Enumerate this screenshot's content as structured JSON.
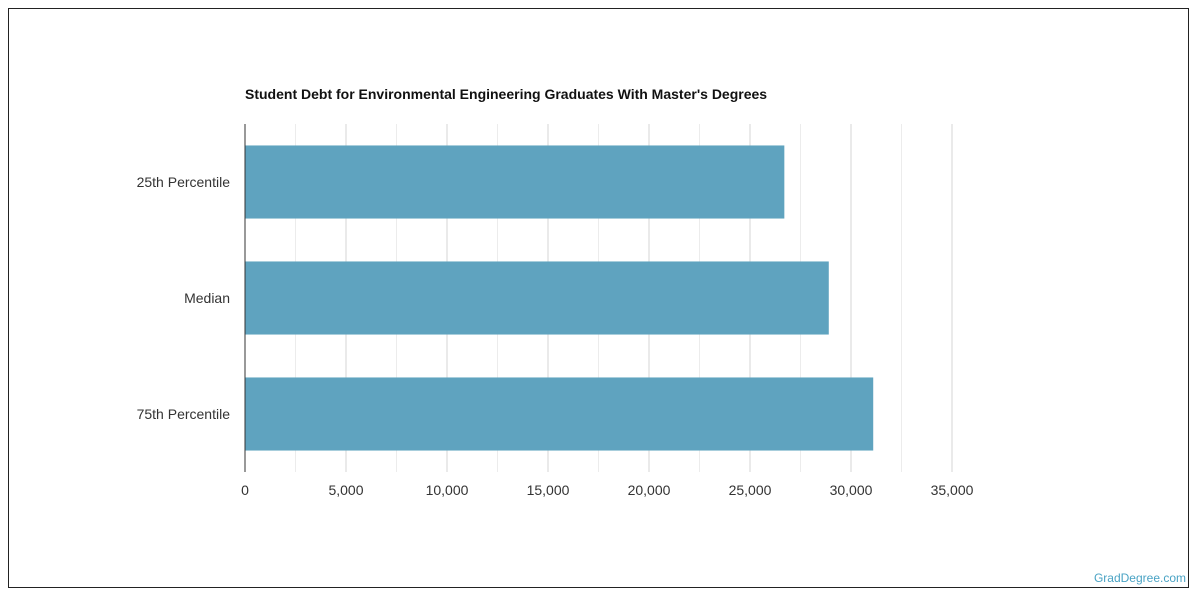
{
  "chart_data": {
    "type": "bar",
    "orientation": "horizontal",
    "title": "Student Debt for Environmental Engineering Graduates With Master's Degrees",
    "categories": [
      "25th Percentile",
      "Median",
      "75th Percentile"
    ],
    "values": [
      26700,
      28900,
      31100
    ],
    "xlim": [
      0,
      35000
    ],
    "x_ticks": [
      "0",
      "5,000",
      "10,000",
      "15,000",
      "20,000",
      "25,000",
      "30,000",
      "35,000"
    ],
    "grid": true,
    "bar_color": "#5fa3bf",
    "xlabel": "",
    "ylabel": ""
  },
  "watermark": "GradDegree.com"
}
